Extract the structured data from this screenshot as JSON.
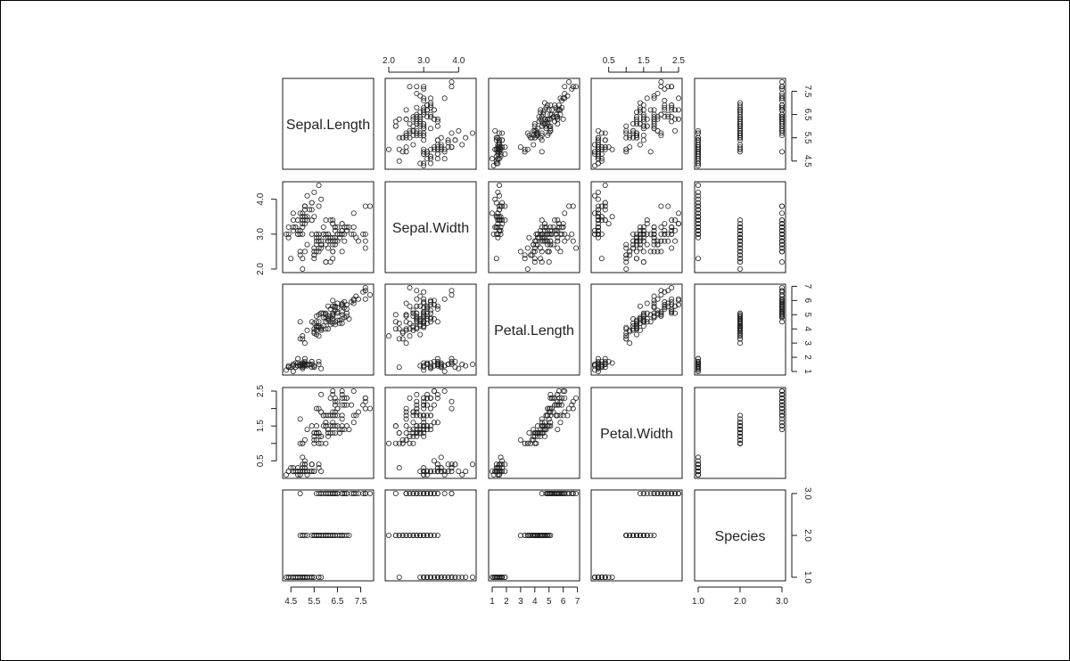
{
  "chart_data": {
    "type": "scatter",
    "chart_kind": "pairs scatterplot matrix",
    "title": "",
    "variables": [
      {
        "name": "Sepal.Length",
        "range": [
          4.3,
          7.9
        ],
        "ticks": [
          4.5,
          5.5,
          6.5,
          7.5
        ],
        "tick_labels": [
          "4.5",
          "5.5",
          "6.5",
          "7.5"
        ]
      },
      {
        "name": "Sepal.Width",
        "range": [
          2.0,
          4.4
        ],
        "ticks": [
          2.0,
          3.0,
          4.0
        ],
        "tick_labels": [
          "2.0",
          "3.0",
          "4.0"
        ]
      },
      {
        "name": "Petal.Length",
        "range": [
          1.0,
          6.9
        ],
        "ticks": [
          1,
          2,
          3,
          4,
          5,
          6,
          7
        ],
        "tick_labels": [
          "1",
          "2",
          "3",
          "4",
          "5",
          "6",
          "7"
        ]
      },
      {
        "name": "Petal.Width",
        "range": [
          0.1,
          2.5
        ],
        "ticks": [
          0.5,
          1.5,
          2.5
        ],
        "tick_labels": [
          "0.5",
          "1.5",
          "2.5"
        ],
        "minor_ticks": [
          1.0,
          2.0
        ]
      },
      {
        "name": "Species",
        "range": [
          1.0,
          3.0
        ],
        "ticks": [
          1.0,
          2.0,
          3.0
        ],
        "tick_labels": [
          "1.0",
          "2.0",
          "3.0"
        ]
      }
    ],
    "axis_placement": {
      "top": [
        1,
        3
      ],
      "bottom": [
        0,
        2,
        4
      ],
      "left": [
        1,
        3
      ],
      "right": [
        0,
        2,
        4
      ]
    },
    "marker": "open circle",
    "grid": false,
    "observations": [
      [
        5.1,
        3.5,
        1.4,
        0.2,
        1
      ],
      [
        4.9,
        3.0,
        1.4,
        0.2,
        1
      ],
      [
        4.7,
        3.2,
        1.3,
        0.2,
        1
      ],
      [
        4.6,
        3.1,
        1.5,
        0.2,
        1
      ],
      [
        5.0,
        3.6,
        1.4,
        0.2,
        1
      ],
      [
        5.4,
        3.9,
        1.7,
        0.4,
        1
      ],
      [
        4.6,
        3.4,
        1.4,
        0.3,
        1
      ],
      [
        5.0,
        3.4,
        1.5,
        0.2,
        1
      ],
      [
        4.4,
        2.9,
        1.4,
        0.2,
        1
      ],
      [
        4.9,
        3.1,
        1.5,
        0.1,
        1
      ],
      [
        5.4,
        3.7,
        1.5,
        0.2,
        1
      ],
      [
        4.8,
        3.4,
        1.6,
        0.2,
        1
      ],
      [
        4.8,
        3.0,
        1.4,
        0.1,
        1
      ],
      [
        4.3,
        3.0,
        1.1,
        0.1,
        1
      ],
      [
        5.8,
        4.0,
        1.2,
        0.2,
        1
      ],
      [
        5.7,
        4.4,
        1.5,
        0.4,
        1
      ],
      [
        5.4,
        3.9,
        1.3,
        0.4,
        1
      ],
      [
        5.1,
        3.5,
        1.4,
        0.3,
        1
      ],
      [
        5.7,
        3.8,
        1.7,
        0.3,
        1
      ],
      [
        5.1,
        3.8,
        1.5,
        0.3,
        1
      ],
      [
        5.4,
        3.4,
        1.7,
        0.2,
        1
      ],
      [
        5.1,
        3.7,
        1.5,
        0.4,
        1
      ],
      [
        4.6,
        3.6,
        1.0,
        0.2,
        1
      ],
      [
        5.1,
        3.3,
        1.7,
        0.5,
        1
      ],
      [
        4.8,
        3.4,
        1.9,
        0.2,
        1
      ],
      [
        5.0,
        3.0,
        1.6,
        0.2,
        1
      ],
      [
        5.0,
        3.4,
        1.6,
        0.4,
        1
      ],
      [
        5.2,
        3.5,
        1.5,
        0.2,
        1
      ],
      [
        5.2,
        3.4,
        1.4,
        0.2,
        1
      ],
      [
        4.7,
        3.2,
        1.6,
        0.2,
        1
      ],
      [
        4.8,
        3.1,
        1.6,
        0.2,
        1
      ],
      [
        5.4,
        3.4,
        1.5,
        0.4,
        1
      ],
      [
        5.2,
        4.1,
        1.5,
        0.1,
        1
      ],
      [
        5.5,
        4.2,
        1.4,
        0.2,
        1
      ],
      [
        4.9,
        3.1,
        1.5,
        0.2,
        1
      ],
      [
        5.0,
        3.2,
        1.2,
        0.2,
        1
      ],
      [
        5.5,
        3.5,
        1.3,
        0.2,
        1
      ],
      [
        4.9,
        3.6,
        1.4,
        0.1,
        1
      ],
      [
        4.4,
        3.0,
        1.3,
        0.2,
        1
      ],
      [
        5.1,
        3.4,
        1.5,
        0.2,
        1
      ],
      [
        5.0,
        3.5,
        1.3,
        0.3,
        1
      ],
      [
        4.5,
        2.3,
        1.3,
        0.3,
        1
      ],
      [
        4.4,
        3.2,
        1.3,
        0.2,
        1
      ],
      [
        5.0,
        3.5,
        1.6,
        0.6,
        1
      ],
      [
        5.1,
        3.8,
        1.9,
        0.4,
        1
      ],
      [
        4.8,
        3.0,
        1.4,
        0.3,
        1
      ],
      [
        5.1,
        3.8,
        1.6,
        0.2,
        1
      ],
      [
        4.6,
        3.2,
        1.4,
        0.2,
        1
      ],
      [
        5.3,
        3.7,
        1.5,
        0.2,
        1
      ],
      [
        5.0,
        3.3,
        1.4,
        0.2,
        1
      ],
      [
        7.0,
        3.2,
        4.7,
        1.4,
        2
      ],
      [
        6.4,
        3.2,
        4.5,
        1.5,
        2
      ],
      [
        6.9,
        3.1,
        4.9,
        1.5,
        2
      ],
      [
        5.5,
        2.3,
        4.0,
        1.3,
        2
      ],
      [
        6.5,
        2.8,
        4.6,
        1.5,
        2
      ],
      [
        5.7,
        2.8,
        4.5,
        1.3,
        2
      ],
      [
        6.3,
        3.3,
        4.7,
        1.6,
        2
      ],
      [
        4.9,
        2.4,
        3.3,
        1.0,
        2
      ],
      [
        6.6,
        2.9,
        4.6,
        1.3,
        2
      ],
      [
        5.2,
        2.7,
        3.9,
        1.4,
        2
      ],
      [
        5.0,
        2.0,
        3.5,
        1.0,
        2
      ],
      [
        5.9,
        3.0,
        4.2,
        1.5,
        2
      ],
      [
        6.0,
        2.2,
        4.0,
        1.0,
        2
      ],
      [
        6.1,
        2.9,
        4.7,
        1.4,
        2
      ],
      [
        5.6,
        2.9,
        3.6,
        1.3,
        2
      ],
      [
        6.7,
        3.1,
        4.4,
        1.4,
        2
      ],
      [
        5.6,
        3.0,
        4.5,
        1.5,
        2
      ],
      [
        5.8,
        2.7,
        4.1,
        1.0,
        2
      ],
      [
        6.2,
        2.2,
        4.5,
        1.5,
        2
      ],
      [
        5.6,
        2.5,
        3.9,
        1.1,
        2
      ],
      [
        5.9,
        3.2,
        4.8,
        1.8,
        2
      ],
      [
        6.1,
        2.8,
        4.0,
        1.3,
        2
      ],
      [
        6.3,
        2.5,
        4.9,
        1.5,
        2
      ],
      [
        6.1,
        2.8,
        4.7,
        1.2,
        2
      ],
      [
        6.4,
        2.9,
        4.3,
        1.3,
        2
      ],
      [
        6.6,
        3.0,
        4.4,
        1.4,
        2
      ],
      [
        6.8,
        2.8,
        4.8,
        1.4,
        2
      ],
      [
        6.7,
        3.0,
        5.0,
        1.7,
        2
      ],
      [
        6.0,
        2.9,
        4.5,
        1.5,
        2
      ],
      [
        5.7,
        2.6,
        3.5,
        1.0,
        2
      ],
      [
        5.5,
        2.4,
        3.8,
        1.1,
        2
      ],
      [
        5.5,
        2.4,
        3.7,
        1.0,
        2
      ],
      [
        5.8,
        2.7,
        3.9,
        1.2,
        2
      ],
      [
        6.0,
        2.7,
        5.1,
        1.6,
        2
      ],
      [
        5.4,
        3.0,
        4.5,
        1.5,
        2
      ],
      [
        6.0,
        3.4,
        4.5,
        1.6,
        2
      ],
      [
        6.7,
        3.1,
        4.7,
        1.5,
        2
      ],
      [
        6.3,
        2.3,
        4.4,
        1.3,
        2
      ],
      [
        5.6,
        3.0,
        4.1,
        1.3,
        2
      ],
      [
        5.5,
        2.5,
        4.0,
        1.3,
        2
      ],
      [
        5.5,
        2.6,
        4.4,
        1.2,
        2
      ],
      [
        6.1,
        3.0,
        4.6,
        1.4,
        2
      ],
      [
        5.8,
        2.6,
        4.0,
        1.2,
        2
      ],
      [
        5.0,
        2.3,
        3.3,
        1.0,
        2
      ],
      [
        5.6,
        2.7,
        4.2,
        1.3,
        2
      ],
      [
        5.7,
        3.0,
        4.2,
        1.2,
        2
      ],
      [
        5.7,
        2.9,
        4.2,
        1.3,
        2
      ],
      [
        6.2,
        2.9,
        4.3,
        1.3,
        2
      ],
      [
        5.1,
        2.5,
        3.0,
        1.1,
        2
      ],
      [
        5.7,
        2.8,
        4.1,
        1.3,
        2
      ],
      [
        6.3,
        3.3,
        6.0,
        2.5,
        3
      ],
      [
        5.8,
        2.7,
        5.1,
        1.9,
        3
      ],
      [
        7.1,
        3.0,
        5.9,
        2.1,
        3
      ],
      [
        6.3,
        2.9,
        5.6,
        1.8,
        3
      ],
      [
        6.5,
        3.0,
        5.8,
        2.2,
        3
      ],
      [
        7.6,
        3.0,
        6.6,
        2.1,
        3
      ],
      [
        4.9,
        2.5,
        4.5,
        1.7,
        3
      ],
      [
        7.3,
        2.9,
        6.3,
        1.8,
        3
      ],
      [
        6.7,
        2.5,
        5.8,
        1.8,
        3
      ],
      [
        7.2,
        3.6,
        6.1,
        2.5,
        3
      ],
      [
        6.5,
        3.2,
        5.1,
        2.0,
        3
      ],
      [
        6.4,
        2.7,
        5.3,
        1.9,
        3
      ],
      [
        6.8,
        3.0,
        5.5,
        2.1,
        3
      ],
      [
        5.7,
        2.5,
        5.0,
        2.0,
        3
      ],
      [
        5.8,
        2.8,
        5.1,
        2.4,
        3
      ],
      [
        6.4,
        3.2,
        5.3,
        2.3,
        3
      ],
      [
        6.5,
        3.0,
        5.5,
        1.8,
        3
      ],
      [
        7.7,
        3.8,
        6.7,
        2.2,
        3
      ],
      [
        7.7,
        2.6,
        6.9,
        2.3,
        3
      ],
      [
        6.0,
        2.2,
        5.0,
        1.5,
        3
      ],
      [
        6.9,
        3.2,
        5.7,
        2.3,
        3
      ],
      [
        5.6,
        2.8,
        4.9,
        2.0,
        3
      ],
      [
        7.7,
        2.8,
        6.7,
        2.0,
        3
      ],
      [
        6.3,
        2.7,
        4.9,
        1.8,
        3
      ],
      [
        6.7,
        3.3,
        5.7,
        2.1,
        3
      ],
      [
        7.2,
        3.2,
        6.0,
        1.8,
        3
      ],
      [
        6.2,
        2.8,
        4.8,
        1.8,
        3
      ],
      [
        6.1,
        3.0,
        4.9,
        1.8,
        3
      ],
      [
        6.4,
        2.8,
        5.6,
        2.1,
        3
      ],
      [
        7.2,
        3.0,
        5.8,
        1.6,
        3
      ],
      [
        7.4,
        2.8,
        6.1,
        1.9,
        3
      ],
      [
        7.9,
        3.8,
        6.4,
        2.0,
        3
      ],
      [
        6.4,
        2.8,
        5.6,
        2.2,
        3
      ],
      [
        6.3,
        2.8,
        5.1,
        1.5,
        3
      ],
      [
        6.1,
        2.6,
        5.6,
        1.4,
        3
      ],
      [
        7.7,
        3.0,
        6.1,
        2.3,
        3
      ],
      [
        6.3,
        3.4,
        5.6,
        2.4,
        3
      ],
      [
        6.4,
        3.1,
        5.5,
        1.8,
        3
      ],
      [
        6.0,
        3.0,
        4.8,
        1.8,
        3
      ],
      [
        6.9,
        3.1,
        5.4,
        2.1,
        3
      ],
      [
        6.7,
        3.1,
        5.6,
        2.4,
        3
      ],
      [
        6.9,
        3.1,
        5.1,
        2.3,
        3
      ],
      [
        5.8,
        2.7,
        5.1,
        1.9,
        3
      ],
      [
        6.8,
        3.2,
        5.9,
        2.3,
        3
      ],
      [
        6.7,
        3.3,
        5.7,
        2.5,
        3
      ],
      [
        6.7,
        3.0,
        5.2,
        2.3,
        3
      ],
      [
        6.3,
        2.5,
        5.0,
        1.9,
        3
      ],
      [
        6.5,
        3.0,
        5.2,
        2.0,
        3
      ],
      [
        6.2,
        3.4,
        5.4,
        2.3,
        3
      ],
      [
        5.9,
        3.0,
        5.1,
        1.8,
        3
      ]
    ]
  }
}
